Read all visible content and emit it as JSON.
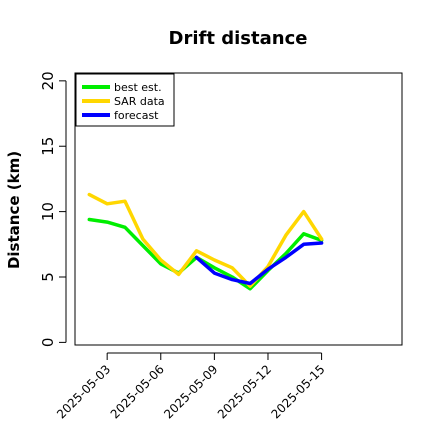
{
  "chart_data": {
    "type": "line",
    "title": "Drift distance",
    "xlabel": "",
    "ylabel": "Distance (km)",
    "x_tick_labels": [
      "2025-05-03",
      "2025-05-06",
      "2025-05-09",
      "2025-05-12",
      "2025-05-15"
    ],
    "x_tick_days": [
      3,
      6,
      9,
      12,
      15
    ],
    "xlim_days": [
      1.2,
      19.5
    ],
    "yticks": [
      0,
      5,
      10,
      15,
      20
    ],
    "ylim": [
      -0.2,
      20.6
    ],
    "grid": false,
    "legend_position": "top-left",
    "series": [
      {
        "name": "best est.",
        "color": "#00ee00",
        "x_days": [
          2,
          3,
          4,
          5,
          6,
          7,
          8,
          9,
          10,
          11,
          12,
          13,
          14,
          15
        ],
        "values": [
          9.4,
          9.2,
          8.8,
          7.4,
          6.0,
          5.3,
          6.5,
          5.7,
          5.0,
          4.1,
          5.5,
          6.8,
          8.3,
          7.8
        ]
      },
      {
        "name": "SAR data",
        "color": "#ffd700",
        "x_days": [
          2,
          3,
          4,
          5,
          6,
          7,
          8,
          9,
          10,
          11,
          12,
          13,
          14,
          15
        ],
        "values": [
          11.3,
          10.6,
          10.8,
          7.9,
          6.3,
          5.2,
          7.0,
          6.3,
          5.7,
          4.3,
          5.8,
          8.2,
          10.0,
          7.9
        ]
      },
      {
        "name": "forecast",
        "color": "#0000ff",
        "x_days": [
          8,
          9,
          10,
          11,
          12,
          13,
          14,
          15
        ],
        "values": [
          6.5,
          5.3,
          4.8,
          4.5,
          5.6,
          6.5,
          7.5,
          7.6
        ]
      }
    ]
  }
}
